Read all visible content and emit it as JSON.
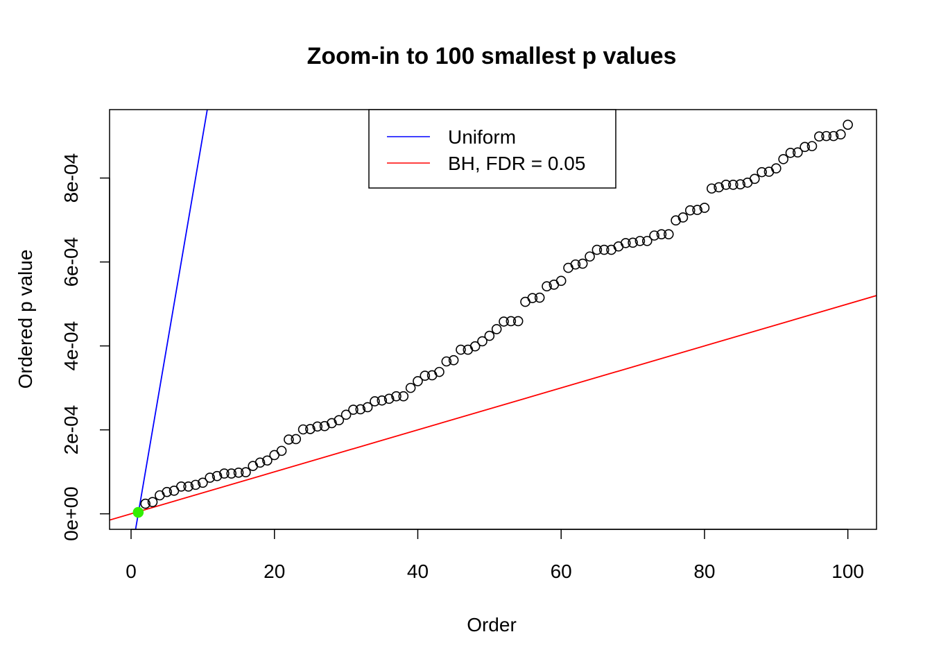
{
  "chart_data": {
    "type": "scatter",
    "title": "Zoom-in to 100 smallest p values",
    "xlabel": "Order",
    "ylabel": "Ordered p value",
    "xlim": [
      -3,
      104
    ],
    "ylim": [
      -3.7e-05,
      0.000963
    ],
    "x_ticks": [
      0,
      20,
      40,
      60,
      80,
      100
    ],
    "x_tick_labels": [
      "0",
      "20",
      "40",
      "60",
      "80",
      "100"
    ],
    "y_ticks": [
      0,
      0.0002,
      0.0004,
      0.0006,
      0.0008
    ],
    "y_tick_labels": [
      "0e+00",
      "2e-04",
      "4e-04",
      "6e-04",
      "8e-04"
    ],
    "grid": false,
    "legend": {
      "position": "top-center",
      "entries": [
        {
          "label": "Uniform",
          "color": "#0000ff"
        },
        {
          "label": "BH, FDR = 0.05",
          "color": "#ff0000"
        }
      ]
    },
    "series": [
      {
        "type": "scatter",
        "marker": "open-circle",
        "color": "#000000",
        "x": [
          2,
          3,
          4,
          5,
          6,
          7,
          8,
          9,
          10,
          11,
          12,
          13,
          14,
          15,
          16,
          17,
          18,
          19,
          20,
          21,
          22,
          23,
          24,
          25,
          26,
          27,
          28,
          29,
          30,
          31,
          32,
          33,
          34,
          35,
          36,
          37,
          38,
          39,
          40,
          41,
          42,
          43,
          44,
          45,
          46,
          47,
          48,
          49,
          50,
          51,
          52,
          53,
          54,
          55,
          56,
          57,
          58,
          59,
          60,
          61,
          62,
          63,
          64,
          65,
          66,
          67,
          68,
          69,
          70,
          71,
          72,
          73,
          74,
          75,
          76,
          77,
          78,
          79,
          80,
          81,
          82,
          83,
          84,
          85,
          86,
          87,
          88,
          89,
          90,
          91,
          92,
          93,
          94,
          95,
          96,
          97,
          98,
          99,
          100
        ],
        "y": [
          2.4e-05,
          2.8e-05,
          4.4e-05,
          5.2e-05,
          5.5e-05,
          6.5e-05,
          6.5e-05,
          6.9e-05,
          7.4e-05,
          8.6e-05,
          9e-05,
          9.6e-05,
          9.6e-05,
          9.8e-05,
          9.9e-05,
          0.000114,
          0.000122,
          0.000127,
          0.00014,
          0.00015,
          0.000177,
          0.000178,
          0.000201,
          0.000202,
          0.000208,
          0.000209,
          0.000216,
          0.000223,
          0.000236,
          0.000248,
          0.000249,
          0.000254,
          0.000268,
          0.00027,
          0.000274,
          0.00028,
          0.00028,
          0.0003,
          0.000316,
          0.000329,
          0.00033,
          0.000338,
          0.000363,
          0.000366,
          0.000391,
          0.000391,
          0.000399,
          0.000411,
          0.000424,
          0.00044,
          0.000458,
          0.000459,
          0.000459,
          0.000505,
          0.000514,
          0.000515,
          0.000542,
          0.000546,
          0.000555,
          0.000586,
          0.000594,
          0.000596,
          0.000613,
          0.000629,
          0.000629,
          0.000629,
          0.000637,
          0.000645,
          0.000646,
          0.00065,
          0.00065,
          0.000663,
          0.000666,
          0.000666,
          0.000699,
          0.000706,
          0.000723,
          0.000724,
          0.000729,
          0.000775,
          0.000778,
          0.000784,
          0.000784,
          0.000785,
          0.000789,
          0.000798,
          0.000814,
          0.000815,
          0.000823,
          0.000845,
          0.00086,
          0.000861,
          0.000874,
          0.000876,
          0.000899,
          0.0009,
          0.0009,
          0.000904,
          0.000927
        ]
      },
      {
        "type": "scatter",
        "marker": "filled-circle",
        "color": "#33ee00",
        "x": [
          1
        ],
        "y": [
          3.5e-06
        ]
      },
      {
        "type": "line",
        "name": "Uniform",
        "color": "#0000ff",
        "slope": 0.0001,
        "intercept": -0.0001
      },
      {
        "type": "line",
        "name": "BH, FDR = 0.05",
        "color": "#ff0000",
        "slope": 5e-06,
        "intercept": 0
      }
    ]
  }
}
